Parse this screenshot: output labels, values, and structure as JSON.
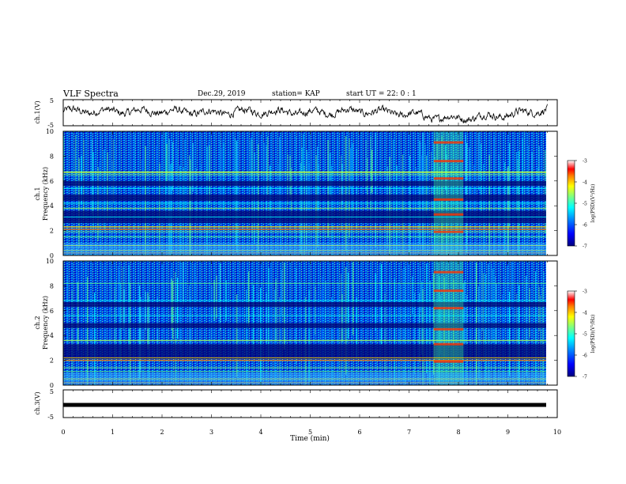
{
  "header": {
    "title": "VLF Spectra",
    "date": "Dec.29, 2019",
    "station": "station= KAP",
    "start_ut": "start  UT =   22: 0  : 1"
  },
  "colorbar": {
    "label": "log(PSD)(V²/Hz)",
    "ticks": [
      "-3",
      "-4",
      "-5",
      "-6",
      "-7"
    ],
    "colors": [
      "#000080",
      "#0000ff",
      "#0080ff",
      "#00ffff",
      "#80ff80",
      "#ffff00",
      "#ff8000",
      "#ff0000",
      "#ffffff"
    ]
  },
  "chart_data": [
    {
      "type": "line",
      "ylabel": "ch.1(V)",
      "yticks": [
        "5",
        "-5"
      ],
      "ylim": [
        -5,
        5
      ],
      "xlim": [
        0,
        10
      ],
      "series": [
        {
          "x": [
            0,
            1,
            2,
            3,
            4,
            5,
            6,
            7,
            7.5,
            8,
            8.5,
            9,
            9.5,
            9.8
          ],
          "y": [
            0.6,
            0.5,
            0.5,
            0.0,
            0.5,
            0.0,
            0.6,
            -0.5,
            -1.8,
            -2.1,
            -1.5,
            -0.8,
            0.5,
            1.4
          ]
        }
      ]
    },
    {
      "type": "heatmap",
      "ylabel": "ch.1",
      "ylabel2": "Frequency (kHz)",
      "yticks": [
        "10",
        "8",
        "6",
        "4",
        "2",
        "0"
      ],
      "ylim": [
        0,
        10
      ],
      "xlim": [
        0,
        9.8
      ],
      "zlim": [
        -7,
        -3
      ]
    },
    {
      "type": "heatmap",
      "ylabel": "ch.2",
      "ylabel2": "Frequency (kHz)",
      "yticks": [
        "10",
        "8",
        "6",
        "4",
        "2",
        "0"
      ],
      "ylim": [
        0,
        10
      ],
      "xlim": [
        0,
        9.8
      ],
      "zlim": [
        -7,
        -3
      ]
    },
    {
      "type": "line",
      "ylabel": "ch.3(V)",
      "yticks": [
        "5",
        "-5"
      ],
      "ylim": [
        -5,
        5
      ],
      "xlim": [
        0,
        10
      ],
      "xlabel": "Time (min)",
      "xticks": [
        "0",
        "1",
        "2",
        "3",
        "4",
        "5",
        "6",
        "7",
        "8",
        "9",
        "10"
      ],
      "series": [
        {
          "x": [
            0,
            9.8
          ],
          "y": [
            -1,
            -1
          ]
        }
      ]
    }
  ]
}
